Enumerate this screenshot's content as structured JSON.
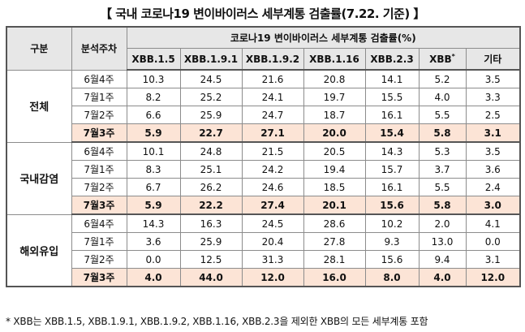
{
  "title": "【 국내 코로나19 변이바이러스 세부계통 검출률(7.22. 기준) 】",
  "header": {
    "group_label": "구분",
    "week_label": "분석주차",
    "span_label": "코로나19 변이바이러스 세부계통 검출률(%)",
    "columns": [
      "XBB.1.5",
      "XBB.1.9.1",
      "XBB.1.9.2",
      "XBB.1.16",
      "XBB.2.3",
      "XBB",
      "기타"
    ],
    "xbb_sup": "*"
  },
  "groups": [
    {
      "name": "전체",
      "rows": [
        {
          "week": "6월4주",
          "values": [
            "10.3",
            "24.5",
            "21.6",
            "20.8",
            "14.1",
            "5.2",
            "3.5"
          ]
        },
        {
          "week": "7월1주",
          "values": [
            "8.2",
            "25.2",
            "24.1",
            "19.7",
            "15.5",
            "4.0",
            "3.3"
          ]
        },
        {
          "week": "7월2주",
          "values": [
            "6.6",
            "25.9",
            "24.7",
            "18.7",
            "16.1",
            "5.5",
            "2.5"
          ]
        },
        {
          "week": "7월3주",
          "values": [
            "5.9",
            "22.7",
            "27.1",
            "20.0",
            "15.4",
            "5.8",
            "3.1"
          ]
        }
      ]
    },
    {
      "name": "국내감염",
      "rows": [
        {
          "week": "6월4주",
          "values": [
            "10.1",
            "24.8",
            "21.5",
            "20.5",
            "14.3",
            "5.3",
            "3.5"
          ]
        },
        {
          "week": "7월1주",
          "values": [
            "8.3",
            "25.1",
            "24.2",
            "19.4",
            "15.7",
            "3.7",
            "3.6"
          ]
        },
        {
          "week": "7월2주",
          "values": [
            "6.7",
            "26.2",
            "24.6",
            "18.5",
            "16.1",
            "5.5",
            "2.4"
          ]
        },
        {
          "week": "7월3주",
          "values": [
            "5.9",
            "22.2",
            "27.4",
            "20.1",
            "15.6",
            "5.8",
            "3.0"
          ]
        }
      ]
    },
    {
      "name": "해외유입",
      "rows": [
        {
          "week": "6월4주",
          "values": [
            "14.3",
            "16.3",
            "24.5",
            "28.6",
            "10.2",
            "2.0",
            "4.1"
          ]
        },
        {
          "week": "7월1주",
          "values": [
            "3.6",
            "25.9",
            "20.4",
            "27.8",
            "9.3",
            "13.0",
            "0.0"
          ]
        },
        {
          "week": "7월2주",
          "values": [
            "0.0",
            "12.5",
            "31.3",
            "28.1",
            "15.6",
            "9.4",
            "3.1"
          ]
        },
        {
          "week": "7월3주",
          "values": [
            "4.0",
            "44.0",
            "12.0",
            "16.0",
            "8.0",
            "4.0",
            "12.0"
          ]
        }
      ]
    }
  ],
  "highlight_week": "7월3주",
  "highlight_color": "#fce4d6",
  "header_color": "#e7e7e7",
  "footnote": "* XBB는 XBB.1.5, XBB.1.9.1, XBB.1.9.2, XBB.1.16, XBB.2.3을 제외한 XBB의 모든 세부계통 포함"
}
